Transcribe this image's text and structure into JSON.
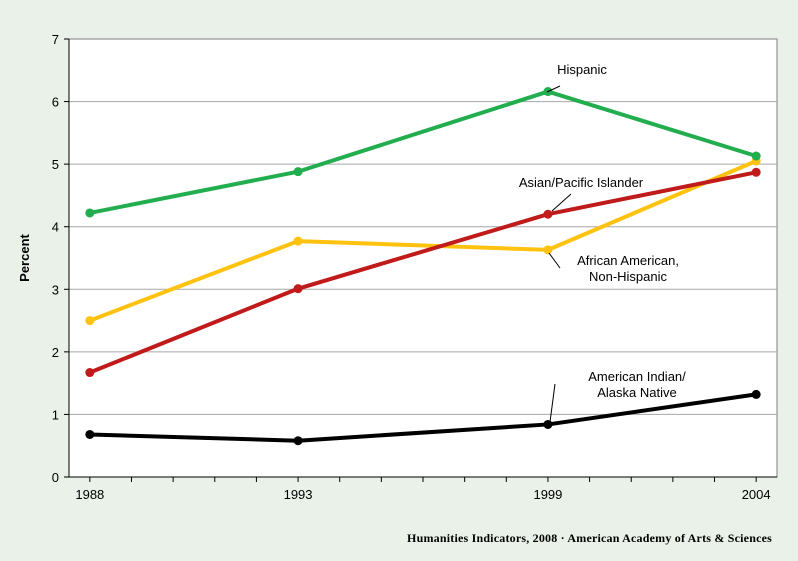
{
  "chart_data": {
    "type": "line",
    "x": [
      1988,
      1993,
      1999,
      2004
    ],
    "x_tick_labels": [
      "1988",
      "1993",
      "1999",
      "2004"
    ],
    "xlim": [
      1987.5,
      2004.5
    ],
    "ylabel": "Percent",
    "ylim": [
      0,
      7
    ],
    "y_ticks": [
      0,
      1,
      2,
      3,
      4,
      5,
      6,
      7
    ],
    "grid": "horizontal",
    "series": [
      {
        "name": "Hispanic",
        "color": "#22ad4f",
        "values": [
          4.22,
          4.88,
          6.16,
          5.13
        ]
      },
      {
        "name": "Asian/Pacific Islander",
        "color": "#c01a1a",
        "values": [
          1.67,
          3.01,
          4.2,
          4.87
        ]
      },
      {
        "name": "African American, Non-Hispanic",
        "color": "#ffc20e",
        "values": [
          2.5,
          3.77,
          3.63,
          5.05
        ]
      },
      {
        "name": "American Indian/ Alaska Native",
        "color": "#000000",
        "values": [
          0.68,
          0.58,
          0.84,
          1.32
        ]
      }
    ],
    "annotations": [
      {
        "series": 0,
        "lines": [
          "Hispanic"
        ]
      },
      {
        "series": 1,
        "lines": [
          "Asian/Pacific Islander"
        ]
      },
      {
        "series": 2,
        "lines": [
          "African American,",
          "Non-Hispanic"
        ]
      },
      {
        "series": 3,
        "lines": [
          "American Indian/",
          "Alaska Native"
        ]
      }
    ]
  },
  "footer": {
    "credit": "Humanities  Indicators, 2008 · American Academy of Arts & Sciences"
  }
}
